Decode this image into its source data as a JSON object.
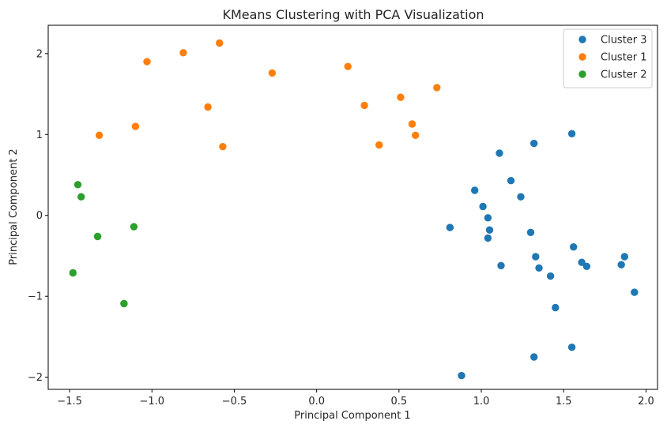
{
  "chart_data": {
    "type": "scatter",
    "title": "KMeans Clustering with PCA Visualization",
    "xlabel": "Principal Component 1",
    "ylabel": "Principal Component 2",
    "xlim": [
      -1.63,
      2.07
    ],
    "ylim": [
      -2.15,
      2.35
    ],
    "xticks": [
      -1.5,
      -1.0,
      -0.5,
      0.0,
      0.5,
      1.0,
      1.5,
      2.0
    ],
    "xtick_labels": [
      "−1.5",
      "−1.0",
      "−0.5",
      "0.0",
      "0.5",
      "1.0",
      "1.5",
      "2.0"
    ],
    "yticks": [
      -2,
      -1,
      0,
      1,
      2
    ],
    "ytick_labels": [
      "−2",
      "−1",
      "0",
      "1",
      "2"
    ],
    "grid": false,
    "legend_position": "top-right",
    "series": [
      {
        "name": "Cluster 3",
        "color": "#1f77b4",
        "points": [
          [
            1.55,
            1.01
          ],
          [
            1.32,
            0.89
          ],
          [
            1.11,
            0.77
          ],
          [
            1.18,
            0.43
          ],
          [
            1.24,
            0.23
          ],
          [
            0.96,
            0.31
          ],
          [
            1.01,
            0.11
          ],
          [
            1.04,
            -0.03
          ],
          [
            1.05,
            -0.18
          ],
          [
            1.04,
            -0.28
          ],
          [
            0.81,
            -0.15
          ],
          [
            1.12,
            -0.62
          ],
          [
            1.3,
            -0.21
          ],
          [
            1.33,
            -0.51
          ],
          [
            1.35,
            -0.65
          ],
          [
            1.42,
            -0.75
          ],
          [
            1.56,
            -0.39
          ],
          [
            1.61,
            -0.58
          ],
          [
            1.64,
            -0.63
          ],
          [
            1.85,
            -0.61
          ],
          [
            1.87,
            -0.51
          ],
          [
            1.93,
            -0.95
          ],
          [
            1.45,
            -1.14
          ],
          [
            1.55,
            -1.63
          ],
          [
            1.32,
            -1.75
          ],
          [
            0.88,
            -1.98
          ]
        ]
      },
      {
        "name": "Cluster 1",
        "color": "#ff7f0e",
        "points": [
          [
            -0.59,
            2.13
          ],
          [
            -0.81,
            2.01
          ],
          [
            -1.03,
            1.9
          ],
          [
            -0.27,
            1.76
          ],
          [
            0.19,
            1.84
          ],
          [
            0.73,
            1.58
          ],
          [
            0.51,
            1.46
          ],
          [
            0.29,
            1.36
          ],
          [
            -0.66,
            1.34
          ],
          [
            0.58,
            1.13
          ],
          [
            -1.1,
            1.1
          ],
          [
            -1.32,
            0.99
          ],
          [
            0.6,
            0.99
          ],
          [
            0.38,
            0.87
          ],
          [
            -0.57,
            0.85
          ]
        ]
      },
      {
        "name": "Cluster 2",
        "color": "#2ca02c",
        "points": [
          [
            -1.45,
            0.38
          ],
          [
            -1.43,
            0.23
          ],
          [
            -1.33,
            -0.26
          ],
          [
            -1.33,
            -0.26
          ],
          [
            -1.11,
            -0.14
          ],
          [
            -1.48,
            -0.71
          ],
          [
            -1.17,
            -1.09
          ],
          [
            -1.17,
            -1.09
          ]
        ]
      }
    ]
  }
}
